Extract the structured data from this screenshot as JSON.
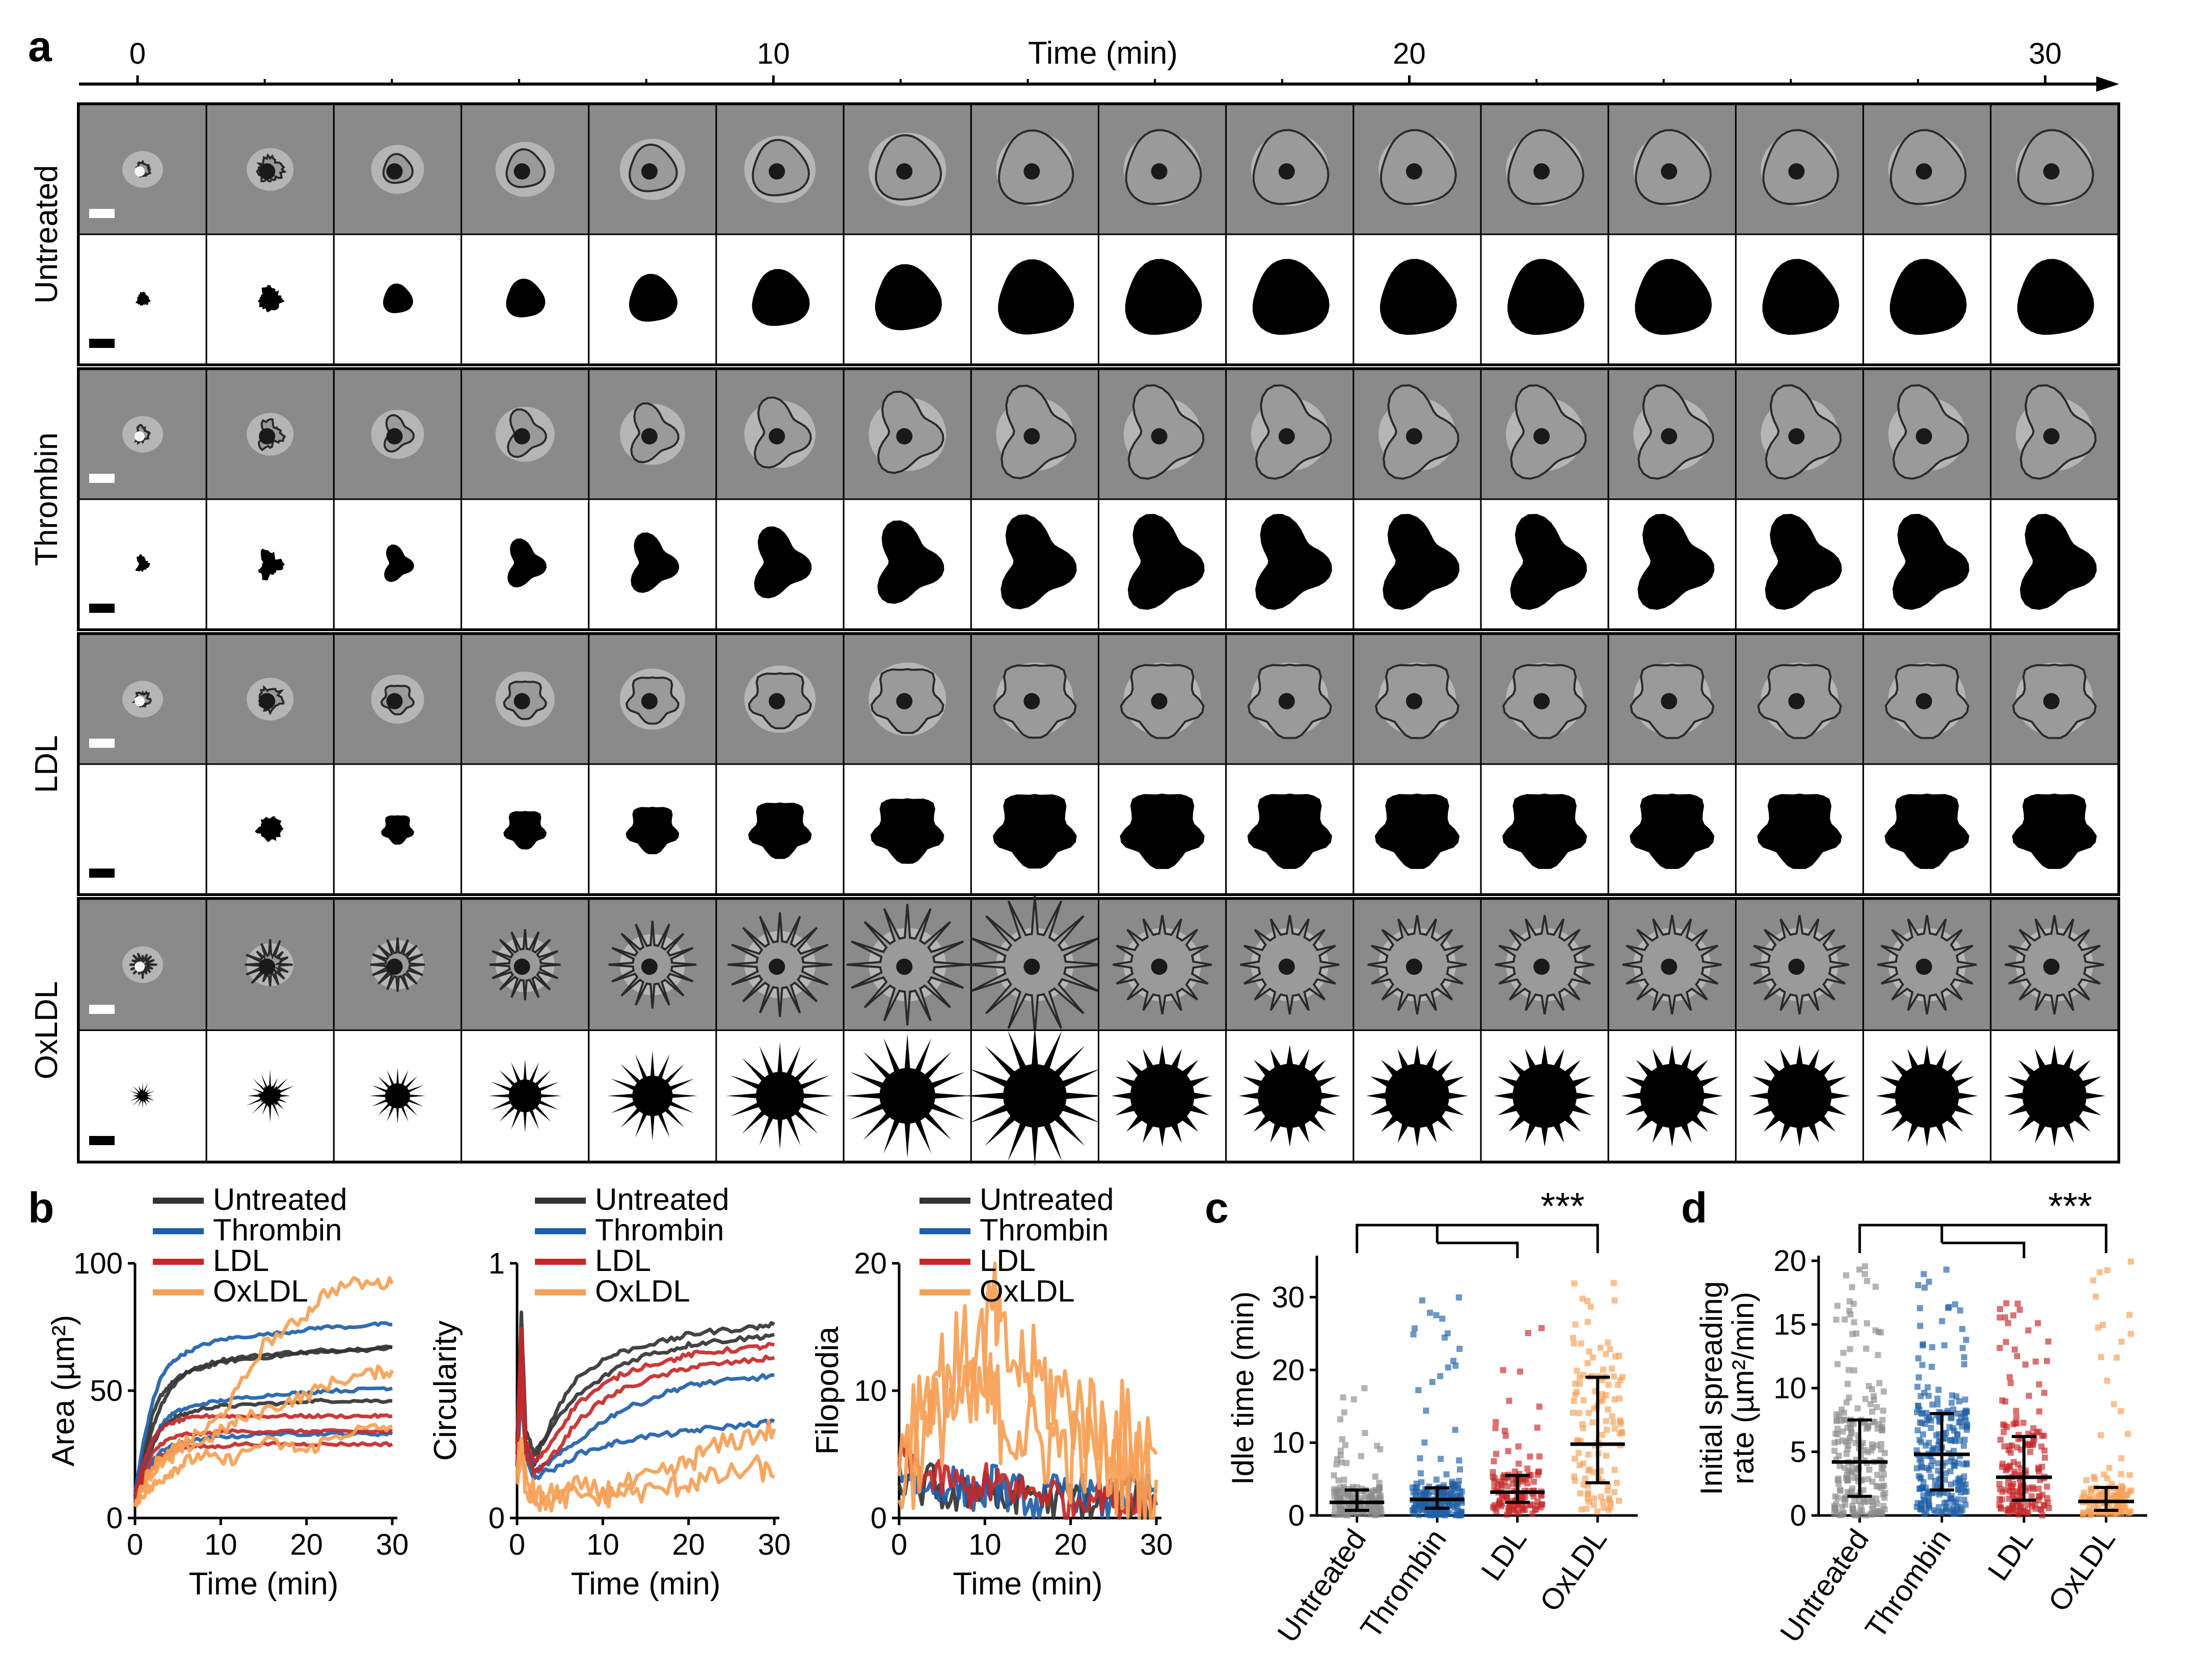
{
  "panel_labels": {
    "a": "a",
    "b": "b",
    "c": "c",
    "d": "d"
  },
  "panel_a": {
    "time_axis": {
      "title": "Time (min)",
      "ticks": [
        "0",
        "10",
        "20",
        "30"
      ],
      "tick_values": [
        0,
        10,
        20,
        30
      ],
      "max_minutes": 32
    },
    "frames_per_row": 16,
    "conditions": [
      "Untreated",
      "Thrombin",
      "LDL",
      "OxLDL"
    ],
    "cell_shape": [
      "compact-round",
      "lobed-heart",
      "angular-polygon",
      "spiky-star"
    ],
    "colors": {
      "phase_bg": "#8a8a8a",
      "mask": "#000000",
      "scale_bar_phase": "#ffffff",
      "scale_bar_mask": "#000000"
    }
  },
  "legend": [
    "Untreated",
    "Thrombin",
    "LDL",
    "OxLDL"
  ],
  "series_colors": {
    "Untreated": "#333333",
    "Thrombin": "#1f5fa8",
    "LDL": "#c62828",
    "OxLDL": "#f6a055"
  },
  "chart_data": [
    {
      "id": "b-area",
      "type": "line",
      "xlabel": "Time (min)",
      "ylabel": "Area (µm²)",
      "xlim": [
        0,
        30
      ],
      "ylim": [
        0,
        100
      ],
      "xticks": [
        "0",
        "10",
        "20",
        "30"
      ],
      "yticks": [
        "0",
        "50",
        "100"
      ],
      "x": [
        0,
        1,
        2,
        3,
        4,
        5,
        6,
        8,
        10,
        12,
        15,
        18,
        20,
        22,
        25,
        28,
        30
      ],
      "series": [
        {
          "name": "Untreated",
          "values": [
            10,
            22,
            35,
            44,
            50,
            54,
            57,
            60,
            62,
            63,
            64,
            65,
            65,
            66,
            66,
            67,
            67
          ]
        },
        {
          "name": "Untreated",
          "values": [
            8,
            18,
            28,
            35,
            38,
            40,
            41,
            43,
            44,
            44,
            45,
            45,
            46,
            46,
            46,
            46,
            46
          ]
        },
        {
          "name": "Untreated",
          "values": [
            9,
            25,
            40,
            48,
            52,
            55,
            57,
            59,
            61,
            62,
            63,
            64,
            65,
            65,
            66,
            66,
            67
          ]
        },
        {
          "name": "Thrombin",
          "values": [
            10,
            30,
            45,
            55,
            60,
            63,
            65,
            68,
            70,
            71,
            72,
            73,
            74,
            75,
            75,
            76,
            76
          ]
        },
        {
          "name": "Thrombin",
          "values": [
            6,
            15,
            22,
            26,
            28,
            29,
            30,
            31,
            32,
            32,
            33,
            33,
            33,
            33,
            33,
            33,
            33
          ]
        },
        {
          "name": "Thrombin",
          "values": [
            8,
            20,
            30,
            36,
            40,
            42,
            43,
            45,
            46,
            47,
            48,
            49,
            49,
            50,
            50,
            51,
            51
          ]
        },
        {
          "name": "LDL",
          "values": [
            9,
            22,
            30,
            35,
            37,
            38,
            39,
            40,
            40,
            40,
            40,
            40,
            40,
            40,
            40,
            40,
            40
          ]
        },
        {
          "name": "LDL",
          "values": [
            7,
            17,
            25,
            29,
            31,
            32,
            33,
            33,
            34,
            34,
            34,
            34,
            34,
            34,
            34,
            34,
            34
          ]
        },
        {
          "name": "LDL",
          "values": [
            6,
            14,
            20,
            24,
            26,
            27,
            28,
            28,
            28,
            29,
            29,
            29,
            29,
            29,
            29,
            29,
            29
          ]
        },
        {
          "name": "OxLDL",
          "values": [
            5,
            12,
            18,
            22,
            25,
            28,
            30,
            34,
            40,
            50,
            68,
            75,
            80,
            88,
            92,
            92,
            92
          ]
        },
        {
          "name": "OxLDL",
          "values": [
            6,
            14,
            20,
            24,
            22,
            26,
            28,
            30,
            34,
            38,
            42,
            46,
            48,
            52,
            55,
            57,
            58
          ]
        },
        {
          "name": "OxLDL",
          "values": [
            5,
            10,
            12,
            15,
            18,
            20,
            22,
            25,
            22,
            24,
            30,
            28,
            26,
            30,
            34,
            35,
            36
          ]
        }
      ]
    },
    {
      "id": "b-circularity",
      "type": "line",
      "xlabel": "Time (min)",
      "ylabel": "Circularity",
      "xlim": [
        0,
        30
      ],
      "ylim": [
        0,
        1
      ],
      "xticks": [
        "0",
        "10",
        "20",
        "30"
      ],
      "yticks": [
        "0",
        "1"
      ],
      "x": [
        0,
        0.5,
        1,
        2,
        3,
        5,
        7,
        10,
        12,
        15,
        18,
        20,
        22,
        25,
        28,
        30
      ],
      "series": [
        {
          "name": "Untreated",
          "values": [
            0.3,
            0.8,
            0.35,
            0.25,
            0.3,
            0.45,
            0.55,
            0.62,
            0.65,
            0.68,
            0.7,
            0.72,
            0.73,
            0.74,
            0.75,
            0.76
          ]
        },
        {
          "name": "Untreated",
          "values": [
            0.3,
            0.7,
            0.3,
            0.2,
            0.3,
            0.4,
            0.48,
            0.55,
            0.6,
            0.64,
            0.66,
            0.68,
            0.69,
            0.7,
            0.71,
            0.72
          ]
        },
        {
          "name": "Thrombin",
          "values": [
            0.25,
            0.6,
            0.3,
            0.18,
            0.2,
            0.25,
            0.3,
            0.38,
            0.42,
            0.46,
            0.5,
            0.52,
            0.53,
            0.54,
            0.55,
            0.56
          ]
        },
        {
          "name": "Thrombin",
          "values": [
            0.2,
            0.5,
            0.25,
            0.15,
            0.18,
            0.2,
            0.25,
            0.28,
            0.3,
            0.32,
            0.33,
            0.34,
            0.35,
            0.36,
            0.37,
            0.38
          ]
        },
        {
          "name": "LDL",
          "values": [
            0.25,
            0.75,
            0.3,
            0.22,
            0.25,
            0.35,
            0.45,
            0.52,
            0.56,
            0.6,
            0.62,
            0.64,
            0.65,
            0.66,
            0.67,
            0.68
          ]
        },
        {
          "name": "LDL",
          "values": [
            0.2,
            0.6,
            0.25,
            0.18,
            0.2,
            0.28,
            0.38,
            0.46,
            0.5,
            0.54,
            0.57,
            0.59,
            0.6,
            0.61,
            0.62,
            0.63
          ]
        },
        {
          "name": "OxLDL",
          "values": [
            0.2,
            0.3,
            0.15,
            0.1,
            0.08,
            0.1,
            0.12,
            0.1,
            0.12,
            0.15,
            0.18,
            0.22,
            0.26,
            0.3,
            0.33,
            0.35
          ]
        },
        {
          "name": "OxLDL",
          "values": [
            0.15,
            0.25,
            0.12,
            0.08,
            0.06,
            0.07,
            0.09,
            0.08,
            0.1,
            0.1,
            0.12,
            0.14,
            0.15,
            0.17,
            0.2,
            0.16
          ]
        }
      ]
    },
    {
      "id": "b-filopodia",
      "type": "line",
      "xlabel": "Time (min)",
      "ylabel": "Filopodia",
      "xlim": [
        0,
        30
      ],
      "ylim": [
        0,
        20
      ],
      "xticks": [
        "0",
        "10",
        "20",
        "30"
      ],
      "yticks": [
        "0",
        "10",
        "20"
      ],
      "x": [
        0,
        2,
        4,
        6,
        8,
        10,
        11,
        12,
        14,
        16,
        18,
        20,
        22,
        24,
        26,
        28,
        30
      ],
      "series": [
        {
          "name": "Untreated",
          "values": [
            3,
            2,
            3,
            1,
            2,
            3,
            2,
            1,
            2,
            2,
            1,
            2,
            1,
            1,
            2,
            1,
            1
          ]
        },
        {
          "name": "Thrombin",
          "values": [
            4,
            3,
            2,
            3,
            2,
            2,
            3,
            2,
            2,
            1,
            2,
            2,
            2,
            1,
            2,
            2,
            2
          ]
        },
        {
          "name": "LDL",
          "values": [
            5,
            4,
            3,
            3,
            2,
            3,
            2,
            3,
            2,
            2,
            2,
            1,
            2,
            2,
            1,
            2,
            1
          ]
        },
        {
          "name": "OxLDL",
          "values": [
            6,
            9,
            11,
            12,
            13,
            14,
            17,
            13,
            12,
            11,
            10,
            9,
            8,
            7,
            7,
            6,
            5
          ]
        },
        {
          "name": "OxLDL",
          "values": [
            3,
            5,
            7,
            9,
            8,
            10,
            9,
            8,
            7,
            6,
            6,
            5,
            5,
            4,
            4,
            3,
            3
          ]
        }
      ]
    },
    {
      "id": "c-idle-time",
      "type": "scatter",
      "ylabel": "Idle time (min)",
      "ylim": [
        0,
        35
      ],
      "yticks": [
        "0",
        "10",
        "20",
        "30"
      ],
      "categories": [
        "Untreated",
        "Thrombin",
        "LDL",
        "OxLDL"
      ],
      "medians": [
        1.8,
        2.2,
        3.2,
        9.8
      ],
      "q1": [
        0.7,
        1.0,
        1.8,
        4.5
      ],
      "q3": [
        3.5,
        3.8,
        5.5,
        19.0
      ],
      "max": [
        19,
        30,
        28,
        33
      ],
      "point_counts": [
        150,
        190,
        130,
        120
      ],
      "significance": {
        "label": "***",
        "groups": [
          "Untreated",
          "Thrombin",
          "LDL"
        ],
        "vs": "OxLDL"
      }
    },
    {
      "id": "d-spreading-rate",
      "type": "scatter",
      "ylabel": "Initial spreading rate (µm²/min)",
      "ylabel_lines": [
        "Initial spreading",
        "rate (µm²/min)"
      ],
      "ylim": [
        0,
        20
      ],
      "yticks": [
        "0",
        "5",
        "10",
        "15",
        "20"
      ],
      "categories": [
        "Untreated",
        "Thrombin",
        "LDL",
        "OxLDL"
      ],
      "medians": [
        4.2,
        4.8,
        3.0,
        1.1
      ],
      "q1": [
        1.5,
        2.0,
        1.2,
        0.4
      ],
      "q3": [
        7.5,
        8.0,
        6.2,
        2.2
      ],
      "max": [
        20,
        20,
        17,
        20
      ],
      "point_counts": [
        220,
        240,
        170,
        130
      ],
      "significance": {
        "label": "***",
        "groups": [
          "Untreated",
          "Thrombin",
          "LDL"
        ],
        "vs": "OxLDL"
      }
    }
  ]
}
